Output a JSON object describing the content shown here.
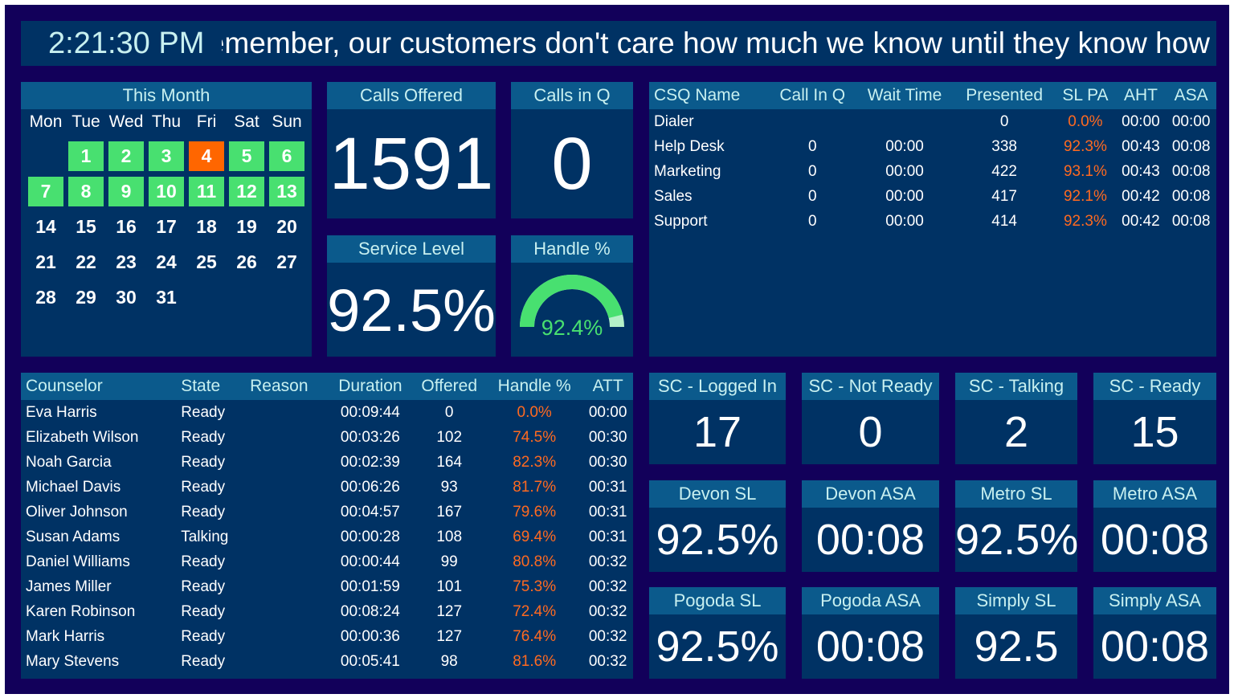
{
  "colors": {
    "frame": "#12005a",
    "panel": "#003264",
    "header": "#0b5a8c",
    "green": "#48e070",
    "orange": "#ff6600"
  },
  "ticker": {
    "clock": "2:21:30 PM",
    "message": "Please remember, our customers don't care how much we know until they know how"
  },
  "calendar": {
    "title": "This Month",
    "weekdays": [
      "Mon",
      "Tue",
      "Wed",
      "Thu",
      "Fri",
      "Sat",
      "Sun"
    ],
    "first_day_offset": 1,
    "days": 31,
    "today": 4,
    "green_days": [
      1,
      2,
      3,
      5,
      6,
      7,
      8,
      9,
      10,
      11,
      12,
      13
    ]
  },
  "calls_offered": {
    "label": "Calls Offered",
    "value": "1591"
  },
  "calls_in_q": {
    "label": "Calls in Q",
    "value": "0"
  },
  "service_level": {
    "label": "Service Level",
    "value": "92.5%"
  },
  "handle": {
    "label": "Handle %",
    "value": "92.4%",
    "fraction": 0.924
  },
  "csq": {
    "headers": [
      "CSQ Name",
      "Call In Q",
      "Wait Time",
      "Presented",
      "SL PA",
      "AHT",
      "ASA"
    ],
    "rows": [
      [
        "Dialer",
        "",
        "",
        "0",
        "0.0%",
        "00:00",
        "00:00"
      ],
      [
        "Help Desk",
        "0",
        "00:00",
        "338",
        "92.3%",
        "00:43",
        "00:08"
      ],
      [
        "Marketing",
        "0",
        "00:00",
        "422",
        "93.1%",
        "00:43",
        "00:08"
      ],
      [
        "Sales",
        "0",
        "00:00",
        "417",
        "92.1%",
        "00:42",
        "00:08"
      ],
      [
        "Support",
        "0",
        "00:00",
        "414",
        "92.3%",
        "00:42",
        "00:08"
      ]
    ]
  },
  "agents": {
    "headers": [
      "Counselor",
      "State",
      "Reason",
      "Duration",
      "Offered",
      "Handle %",
      "ATT"
    ],
    "rows": [
      [
        "Eva Harris",
        "Ready",
        "",
        "00:09:44",
        "0",
        "0.0%",
        "00:00"
      ],
      [
        "Elizabeth Wilson",
        "Ready",
        "",
        "00:03:26",
        "102",
        "74.5%",
        "00:30"
      ],
      [
        "Noah Garcia",
        "Ready",
        "",
        "00:02:39",
        "164",
        "82.3%",
        "00:30"
      ],
      [
        "Michael Davis",
        "Ready",
        "",
        "00:06:26",
        "93",
        "81.7%",
        "00:31"
      ],
      [
        "Oliver Johnson",
        "Ready",
        "",
        "00:04:57",
        "167",
        "79.6%",
        "00:31"
      ],
      [
        "Susan Adams",
        "Talking",
        "",
        "00:00:28",
        "108",
        "69.4%",
        "00:31"
      ],
      [
        "Daniel Williams",
        "Ready",
        "",
        "00:00:44",
        "99",
        "80.8%",
        "00:32"
      ],
      [
        "James Miller",
        "Ready",
        "",
        "00:01:59",
        "101",
        "75.3%",
        "00:32"
      ],
      [
        "Karen Robinson",
        "Ready",
        "",
        "00:08:24",
        "127",
        "72.4%",
        "00:32"
      ],
      [
        "Mark Harris",
        "Ready",
        "",
        "00:00:36",
        "127",
        "76.4%",
        "00:32"
      ],
      [
        "Mary Stevens",
        "Ready",
        "",
        "00:05:41",
        "98",
        "81.6%",
        "00:32"
      ]
    ]
  },
  "tiles": [
    {
      "label": "SC - Logged In",
      "value": "17"
    },
    {
      "label": "SC - Not Ready",
      "value": "0"
    },
    {
      "label": "SC - Talking",
      "value": "2"
    },
    {
      "label": "SC - Ready",
      "value": "15"
    },
    {
      "label": "Devon SL",
      "value": "92.5%"
    },
    {
      "label": "Devon ASA",
      "value": "00:08"
    },
    {
      "label": "Metro SL",
      "value": "92.5%"
    },
    {
      "label": "Metro ASA",
      "value": "00:08"
    },
    {
      "label": "Pogoda SL",
      "value": "92.5%"
    },
    {
      "label": "Pogoda ASA",
      "value": "00:08"
    },
    {
      "label": "Simply SL",
      "value": "92.5"
    },
    {
      "label": "Simply ASA",
      "value": "00:08"
    }
  ]
}
